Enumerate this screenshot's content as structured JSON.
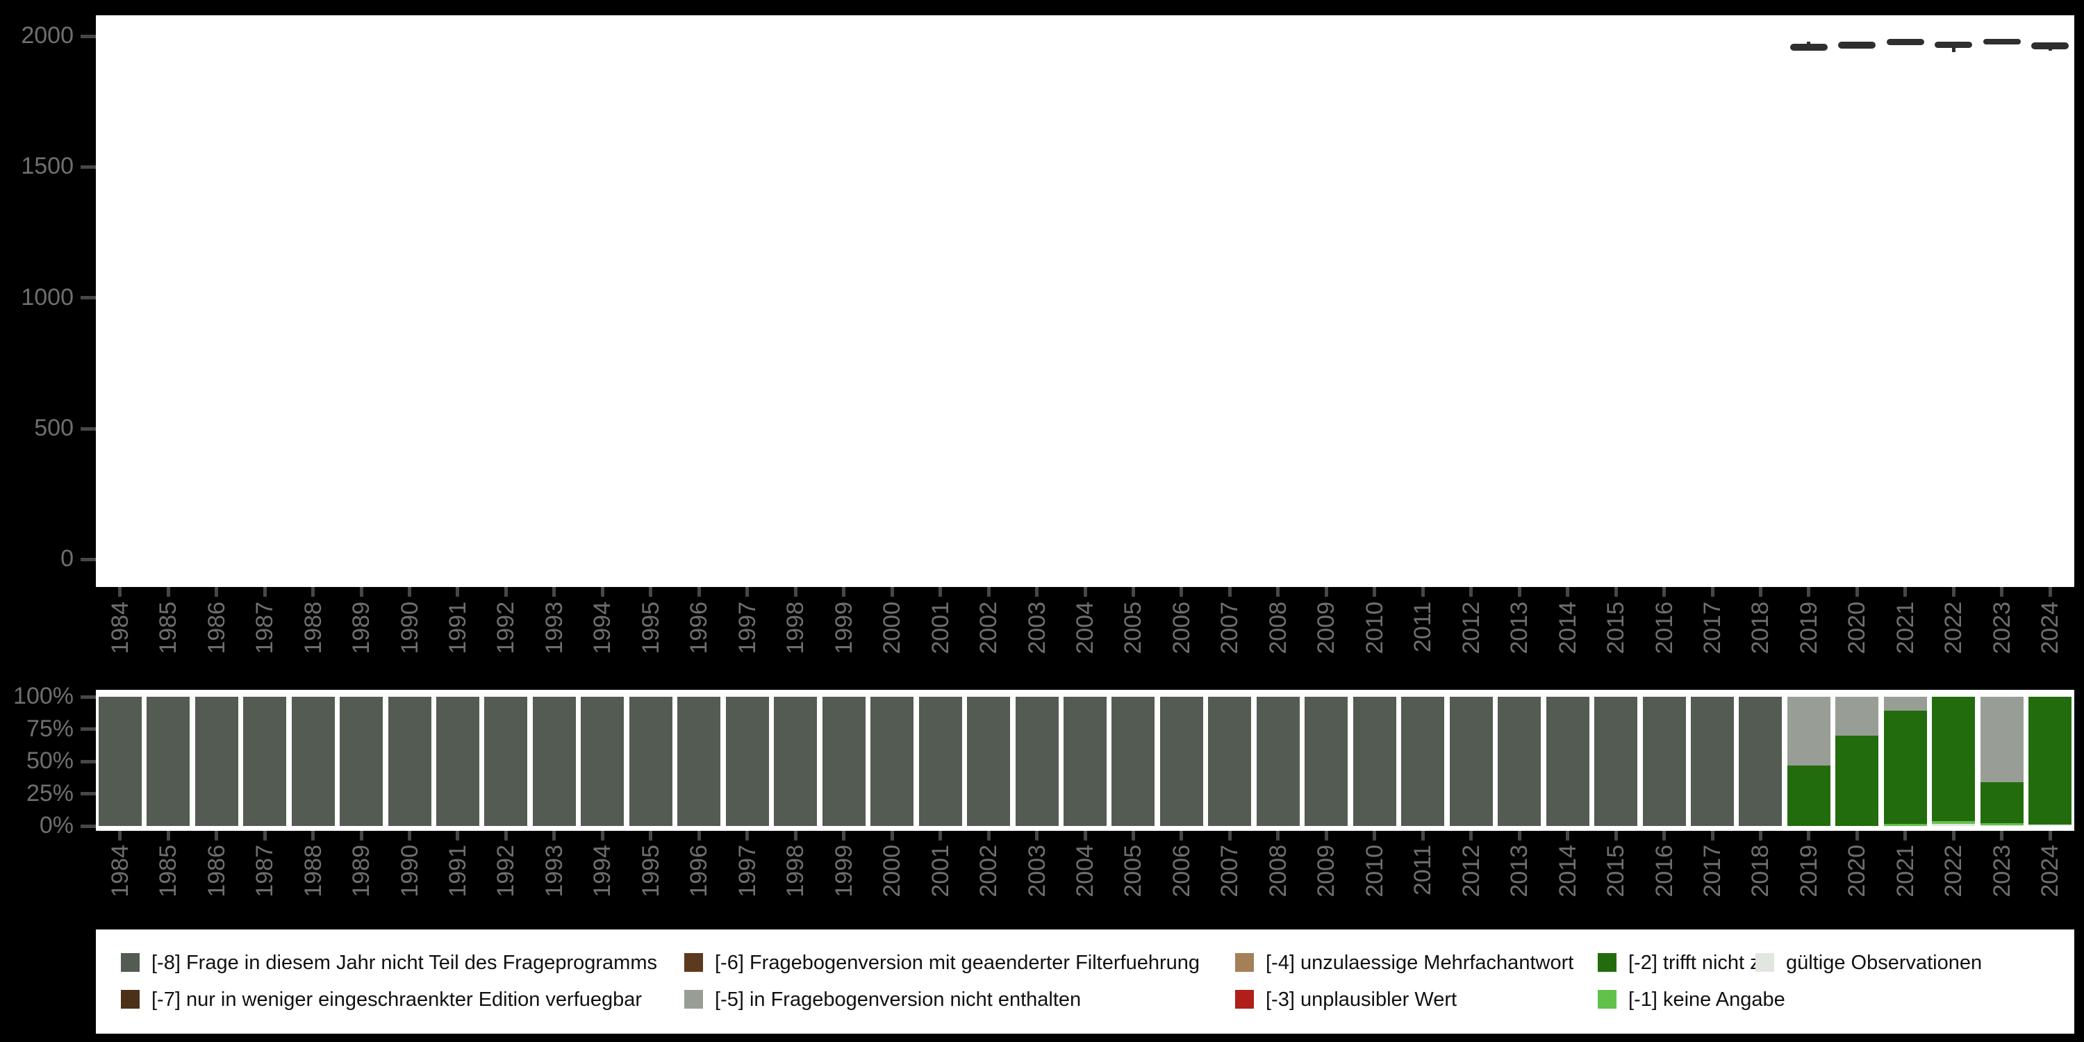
{
  "figure": {
    "background": "#000000",
    "panel_background": "#ffffff",
    "tick_label_color": "#6f6f6f",
    "tick_mark_color": "#474747"
  },
  "chart_data": [
    {
      "type": "boxplot",
      "title": "",
      "xlabel": "",
      "ylabel": "",
      "categories": [
        "1984",
        "1985",
        "1986",
        "1987",
        "1988",
        "1989",
        "1990",
        "1991",
        "1992",
        "1993",
        "1994",
        "1995",
        "1996",
        "1997",
        "1998",
        "1999",
        "2000",
        "2001",
        "2002",
        "2003",
        "2004",
        "2005",
        "2006",
        "2007",
        "2008",
        "2009",
        "2010",
        "2011",
        "2012",
        "2013",
        "2014",
        "2015",
        "2016",
        "2017",
        "2018",
        "2019",
        "2020",
        "2021",
        "2022",
        "2023",
        "2024"
      ],
      "yticks": [
        0,
        500,
        1000,
        1500,
        2000
      ],
      "ytick_labels": [
        "0",
        "500",
        "1000",
        "1500",
        "2000"
      ],
      "ylim": [
        -105,
        2080
      ],
      "grid": false,
      "box_color": "#2f2f2f",
      "series": [
        {
          "year": "2019",
          "low": 1945,
          "q1": 1945,
          "median": 1957,
          "q3": 1970,
          "high": 1978
        },
        {
          "year": "2020",
          "low": 1953,
          "q1": 1953,
          "median": 1966,
          "q3": 1980,
          "high": 1980
        },
        {
          "year": "2021",
          "low": 1965,
          "q1": 1965,
          "median": 1977,
          "q3": 1989,
          "high": 1989
        },
        {
          "year": "2022",
          "low": 1938,
          "q1": 1956,
          "median": 1968,
          "q3": 1980,
          "high": 1980
        },
        {
          "year": "2023",
          "low": 1968,
          "q1": 1968,
          "median": 1978,
          "q3": 1989,
          "high": 1989
        },
        {
          "year": "2024",
          "low": 1944,
          "q1": 1950,
          "median": 1963,
          "q3": 1976,
          "high": 1976
        }
      ]
    },
    {
      "type": "stacked_bar_percent",
      "title": "",
      "xlabel": "",
      "ylabel": "",
      "categories": [
        "1984",
        "1985",
        "1986",
        "1987",
        "1988",
        "1989",
        "1990",
        "1991",
        "1992",
        "1993",
        "1994",
        "1995",
        "1996",
        "1997",
        "1998",
        "1999",
        "2000",
        "2001",
        "2002",
        "2003",
        "2004",
        "2005",
        "2006",
        "2007",
        "2008",
        "2009",
        "2010",
        "2011",
        "2012",
        "2013",
        "2014",
        "2015",
        "2016",
        "2017",
        "2018",
        "2019",
        "2020",
        "2021",
        "2022",
        "2023",
        "2024"
      ],
      "yticks": [
        0,
        25,
        50,
        75,
        100
      ],
      "ytick_labels": [
        "0%",
        "25%",
        "50%",
        "75%",
        "100%"
      ],
      "ylim": [
        0,
        100
      ],
      "grid": false,
      "segment_colors": {
        "-8": "#545B52",
        "-7": "#4B3118",
        "-6": "#5D3A1E",
        "-5": "#989E95",
        "-4": "#A58057",
        "-3": "#B01F19",
        "-2": "#236C0E",
        "-1": "#62C14B",
        "valid": "#E2E6E0"
      },
      "bars": [
        {
          "year": "1984",
          "segments": [
            {
              "code": "-8",
              "pct": 100
            }
          ]
        },
        {
          "year": "1985",
          "segments": [
            {
              "code": "-8",
              "pct": 100
            }
          ]
        },
        {
          "year": "1986",
          "segments": [
            {
              "code": "-8",
              "pct": 100
            }
          ]
        },
        {
          "year": "1987",
          "segments": [
            {
              "code": "-8",
              "pct": 100
            }
          ]
        },
        {
          "year": "1988",
          "segments": [
            {
              "code": "-8",
              "pct": 100
            }
          ]
        },
        {
          "year": "1989",
          "segments": [
            {
              "code": "-8",
              "pct": 100
            }
          ]
        },
        {
          "year": "1990",
          "segments": [
            {
              "code": "-8",
              "pct": 100
            }
          ]
        },
        {
          "year": "1991",
          "segments": [
            {
              "code": "-8",
              "pct": 100
            }
          ]
        },
        {
          "year": "1992",
          "segments": [
            {
              "code": "-8",
              "pct": 100
            }
          ]
        },
        {
          "year": "1993",
          "segments": [
            {
              "code": "-8",
              "pct": 100
            }
          ]
        },
        {
          "year": "1994",
          "segments": [
            {
              "code": "-8",
              "pct": 100
            }
          ]
        },
        {
          "year": "1995",
          "segments": [
            {
              "code": "-8",
              "pct": 100
            }
          ]
        },
        {
          "year": "1996",
          "segments": [
            {
              "code": "-8",
              "pct": 100
            }
          ]
        },
        {
          "year": "1997",
          "segments": [
            {
              "code": "-8",
              "pct": 100
            }
          ]
        },
        {
          "year": "1998",
          "segments": [
            {
              "code": "-8",
              "pct": 100
            }
          ]
        },
        {
          "year": "1999",
          "segments": [
            {
              "code": "-8",
              "pct": 100
            }
          ]
        },
        {
          "year": "2000",
          "segments": [
            {
              "code": "-8",
              "pct": 100
            }
          ]
        },
        {
          "year": "2001",
          "segments": [
            {
              "code": "-8",
              "pct": 100
            }
          ]
        },
        {
          "year": "2002",
          "segments": [
            {
              "code": "-8",
              "pct": 100
            }
          ]
        },
        {
          "year": "2003",
          "segments": [
            {
              "code": "-8",
              "pct": 100
            }
          ]
        },
        {
          "year": "2004",
          "segments": [
            {
              "code": "-8",
              "pct": 100
            }
          ]
        },
        {
          "year": "2005",
          "segments": [
            {
              "code": "-8",
              "pct": 100
            }
          ]
        },
        {
          "year": "2006",
          "segments": [
            {
              "code": "-8",
              "pct": 100
            }
          ]
        },
        {
          "year": "2007",
          "segments": [
            {
              "code": "-8",
              "pct": 100
            }
          ]
        },
        {
          "year": "2008",
          "segments": [
            {
              "code": "-8",
              "pct": 100
            }
          ]
        },
        {
          "year": "2009",
          "segments": [
            {
              "code": "-8",
              "pct": 100
            }
          ]
        },
        {
          "year": "2010",
          "segments": [
            {
              "code": "-8",
              "pct": 100
            }
          ]
        },
        {
          "year": "2011",
          "segments": [
            {
              "code": "-8",
              "pct": 100
            }
          ]
        },
        {
          "year": "2012",
          "segments": [
            {
              "code": "-8",
              "pct": 100
            }
          ]
        },
        {
          "year": "2013",
          "segments": [
            {
              "code": "-8",
              "pct": 100
            }
          ]
        },
        {
          "year": "2014",
          "segments": [
            {
              "code": "-8",
              "pct": 100
            }
          ]
        },
        {
          "year": "2015",
          "segments": [
            {
              "code": "-8",
              "pct": 100
            }
          ]
        },
        {
          "year": "2016",
          "segments": [
            {
              "code": "-8",
              "pct": 100
            }
          ]
        },
        {
          "year": "2017",
          "segments": [
            {
              "code": "-8",
              "pct": 100
            }
          ]
        },
        {
          "year": "2018",
          "segments": [
            {
              "code": "-8",
              "pct": 100
            }
          ]
        },
        {
          "year": "2019",
          "segments": [
            {
              "code": "-5",
              "pct": 53
            },
            {
              "code": "-2",
              "pct": 47
            }
          ]
        },
        {
          "year": "2020",
          "segments": [
            {
              "code": "-5",
              "pct": 30
            },
            {
              "code": "-2",
              "pct": 70
            }
          ]
        },
        {
          "year": "2021",
          "segments": [
            {
              "code": "-5",
              "pct": 11
            },
            {
              "code": "-2",
              "pct": 87.5
            },
            {
              "code": "-1",
              "pct": 1.5
            }
          ]
        },
        {
          "year": "2022",
          "segments": [
            {
              "code": "-2",
              "pct": 96
            },
            {
              "code": "-1",
              "pct": 2.5
            },
            {
              "code": "valid",
              "pct": 1.5
            }
          ]
        },
        {
          "year": "2023",
          "segments": [
            {
              "code": "-5",
              "pct": 66
            },
            {
              "code": "-2",
              "pct": 32
            },
            {
              "code": "-1",
              "pct": 1.5
            },
            {
              "code": "valid",
              "pct": 0.5
            }
          ]
        },
        {
          "year": "2024",
          "segments": [
            {
              "code": "-2",
              "pct": 99
            },
            {
              "code": "valid",
              "pct": 1
            }
          ]
        }
      ]
    }
  ],
  "legend": {
    "text_color": "#111111",
    "entries": [
      {
        "code": "-8",
        "label": "[-8] Frage in diesem Jahr nicht Teil des Frageprogramms",
        "color": "#545B52"
      },
      {
        "code": "-7",
        "label": "[-7] nur in weniger eingeschraenkter Edition verfuegbar",
        "color": "#4B3118"
      },
      {
        "code": "-6",
        "label": "[-6] Fragebogenversion mit geaenderter Filterfuehrung",
        "color": "#5D3A1E"
      },
      {
        "code": "-5",
        "label": "[-5] in Fragebogenversion nicht enthalten",
        "color": "#989E95"
      },
      {
        "code": "-4",
        "label": "[-4] unzulaessige Mehrfachantwort",
        "color": "#A58057"
      },
      {
        "code": "-3",
        "label": "[-3] unplausibler Wert",
        "color": "#B01F19"
      },
      {
        "code": "-2",
        "label": "[-2] trifft nicht zu",
        "color": "#236C0E"
      },
      {
        "code": "-1",
        "label": "[-1] keine Angabe",
        "color": "#62C14B"
      },
      {
        "code": "valid",
        "label": "gültige Observationen",
        "color": "#E2E6E0"
      }
    ]
  }
}
